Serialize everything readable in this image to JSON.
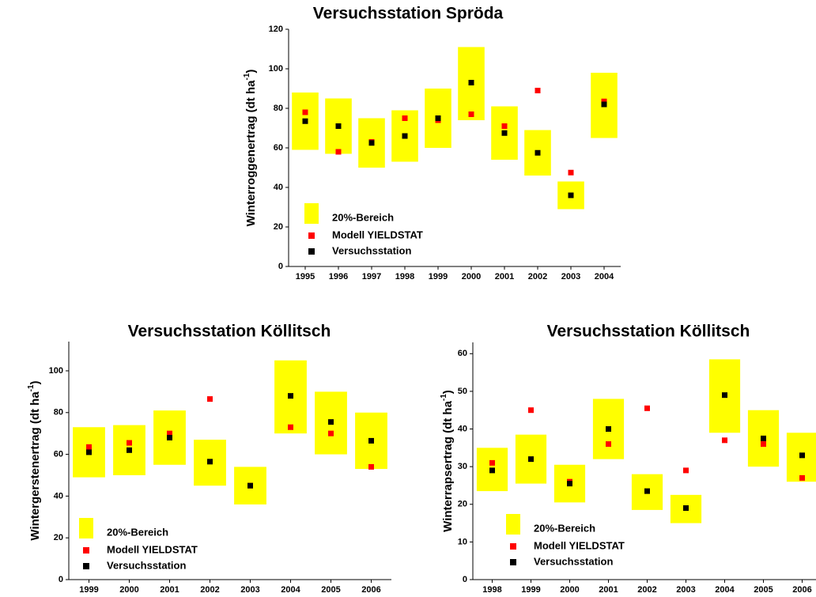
{
  "chart_data": [
    {
      "type": "range",
      "title": "Versuchsstation Spröda",
      "y_label": [
        "Winterroggenertrag (dt ha",
        "-1",
        ")"
      ],
      "categories": [
        "1995",
        "1996",
        "1997",
        "1998",
        "1999",
        "2000",
        "2001",
        "2002",
        "2003",
        "2004"
      ],
      "series": [
        {
          "name": "20%-Bereich",
          "color": "#ffff00",
          "low": [
            59,
            57,
            50,
            53,
            60,
            74,
            54,
            46,
            29,
            65
          ],
          "high": [
            88,
            85,
            75,
            79,
            90,
            111,
            81,
            69,
            43,
            98
          ]
        },
        {
          "name": "Modell YIELDSTAT",
          "color": "#ff0000",
          "values": [
            78,
            58,
            63,
            75,
            74,
            77,
            71,
            89,
            47.5,
            83.5
          ]
        },
        {
          "name": "Versuchsstation",
          "color": "#000000",
          "values": [
            73.5,
            71,
            62.5,
            66,
            75,
            93,
            67.5,
            57.5,
            36,
            82
          ]
        }
      ],
      "ylim": [
        0,
        120
      ],
      "yticks": [
        0,
        20,
        40,
        60,
        80,
        100,
        120
      ]
    },
    {
      "type": "range",
      "title": "Versuchsstation Köllitsch",
      "y_label": [
        "Wintergerstenertrag (dt ha",
        "-1",
        ")"
      ],
      "categories": [
        "1999",
        "2000",
        "2001",
        "2002",
        "2003",
        "2004",
        "2005",
        "2006"
      ],
      "series": [
        {
          "name": "20%-Bereich",
          "color": "#ffff00",
          "low": [
            49,
            50,
            55,
            45,
            36,
            70,
            60,
            53
          ],
          "high": [
            73,
            74,
            81,
            67,
            54,
            105,
            90,
            80
          ]
        },
        {
          "name": "Modell YIELDSTAT",
          "color": "#ff0000",
          "values": [
            63.5,
            65.5,
            70,
            86.5,
            45,
            73,
            70,
            54
          ]
        },
        {
          "name": "Versuchsstation",
          "color": "#000000",
          "values": [
            61,
            62,
            68,
            56.5,
            45,
            88,
            75.5,
            66.5
          ]
        }
      ],
      "ylim": [
        0,
        114
      ],
      "yticks": [
        0,
        20,
        40,
        60,
        80,
        100
      ]
    },
    {
      "type": "range",
      "title": "Versuchsstation Köllitsch",
      "y_label": [
        "Winterrapsertrag (dt ha",
        "-1",
        ")"
      ],
      "categories": [
        "1998",
        "1999",
        "2000",
        "2001",
        "2002",
        "2003",
        "2004",
        "2005",
        "2006"
      ],
      "series": [
        {
          "name": "20%-Bereich",
          "color": "#ffff00",
          "low": [
            23.5,
            25.5,
            20.5,
            32,
            18.5,
            15,
            39,
            30,
            26
          ],
          "high": [
            35,
            38.5,
            30.5,
            48,
            28,
            22.5,
            58.5,
            45,
            39
          ]
        },
        {
          "name": "Modell YIELDSTAT",
          "color": "#ff0000",
          "values": [
            31,
            45,
            26,
            36,
            45.5,
            29,
            37,
            36,
            27
          ]
        },
        {
          "name": "Versuchsstation",
          "color": "#000000",
          "values": [
            29,
            32,
            25.5,
            40,
            23.5,
            19,
            49,
            37.5,
            33
          ]
        }
      ],
      "ylim": [
        0,
        63
      ],
      "yticks": [
        0,
        10,
        20,
        30,
        40,
        50,
        60
      ]
    }
  ]
}
